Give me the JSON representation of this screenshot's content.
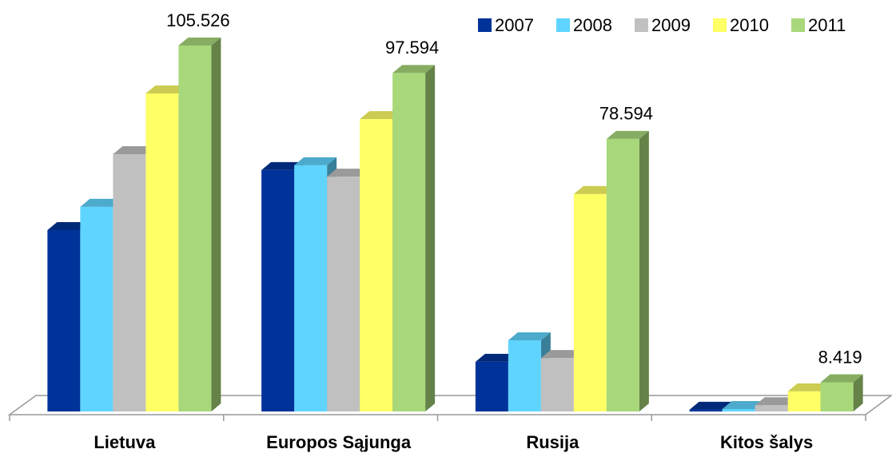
{
  "chart_data": {
    "type": "bar3d",
    "categories": [
      "Lietuva",
      "Europos Sąjunga",
      "Rusija",
      "Kitos šalys"
    ],
    "series": [
      {
        "name": "2007",
        "color": "#003399",
        "values": [
          52.3,
          69.6,
          14.3,
          0.5
        ]
      },
      {
        "name": "2008",
        "color": "#5fd4ff",
        "values": [
          59.0,
          71.0,
          20.5,
          0.7
        ]
      },
      {
        "name": "2009",
        "color": "#c0c0c0",
        "values": [
          74.2,
          67.7,
          15.4,
          1.8
        ]
      },
      {
        "name": "2010",
        "color": "#ffff66",
        "values": [
          91.7,
          84.3,
          62.7,
          5.8
        ]
      },
      {
        "name": "2011",
        "color": "#a8d87a",
        "values": [
          105.526,
          97.594,
          78.594,
          8.419
        ]
      }
    ],
    "legend": "top-right"
  }
}
